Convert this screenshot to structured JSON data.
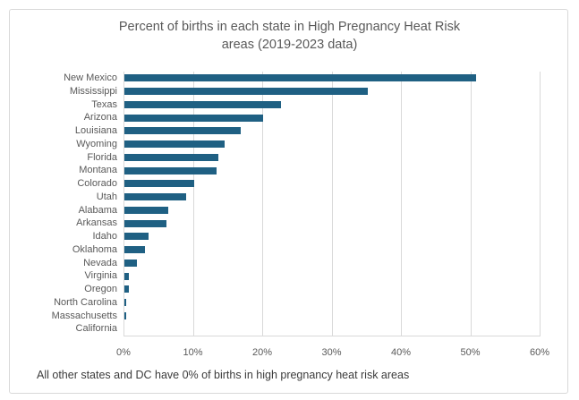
{
  "chart_data": {
    "type": "bar",
    "orientation": "horizontal",
    "title": "Percent of births in each state in High Pregnancy Heat Risk areas (2019-2023 data)",
    "title_lines": [
      "Percent of births in each state in High Pregnancy Heat Risk",
      "areas (2019-2023 data)"
    ],
    "categories": [
      "New Mexico",
      "Mississippi",
      "Texas",
      "Arizona",
      "Louisiana",
      "Wyoming",
      "Florida",
      "Montana",
      "Colorado",
      "Utah",
      "Alabama",
      "Arkansas",
      "Idaho",
      "Oklahoma",
      "Nevada",
      "Virginia",
      "Oregon",
      "North Carolina",
      "Massachusetts",
      "California"
    ],
    "values": [
      50.7,
      35.1,
      22.6,
      20.0,
      16.8,
      14.5,
      13.6,
      13.3,
      10.1,
      8.9,
      6.3,
      6.1,
      3.5,
      3.0,
      1.8,
      0.6,
      0.6,
      0.2,
      0.2,
      0
    ],
    "xlabel": "",
    "ylabel": "",
    "xlim": [
      0,
      60
    ],
    "xticks": [
      "0%",
      "10%",
      "20%",
      "30%",
      "40%",
      "50%",
      "60%"
    ],
    "xtick_values": [
      0,
      10,
      20,
      30,
      40,
      50,
      60
    ],
    "grid": "vertical",
    "legend": "none",
    "bar_color": "#1f6083",
    "gridline_color": "#d9d9d9",
    "footnote": "All other states and DC have 0% of births in high pregnancy heat risk areas"
  }
}
